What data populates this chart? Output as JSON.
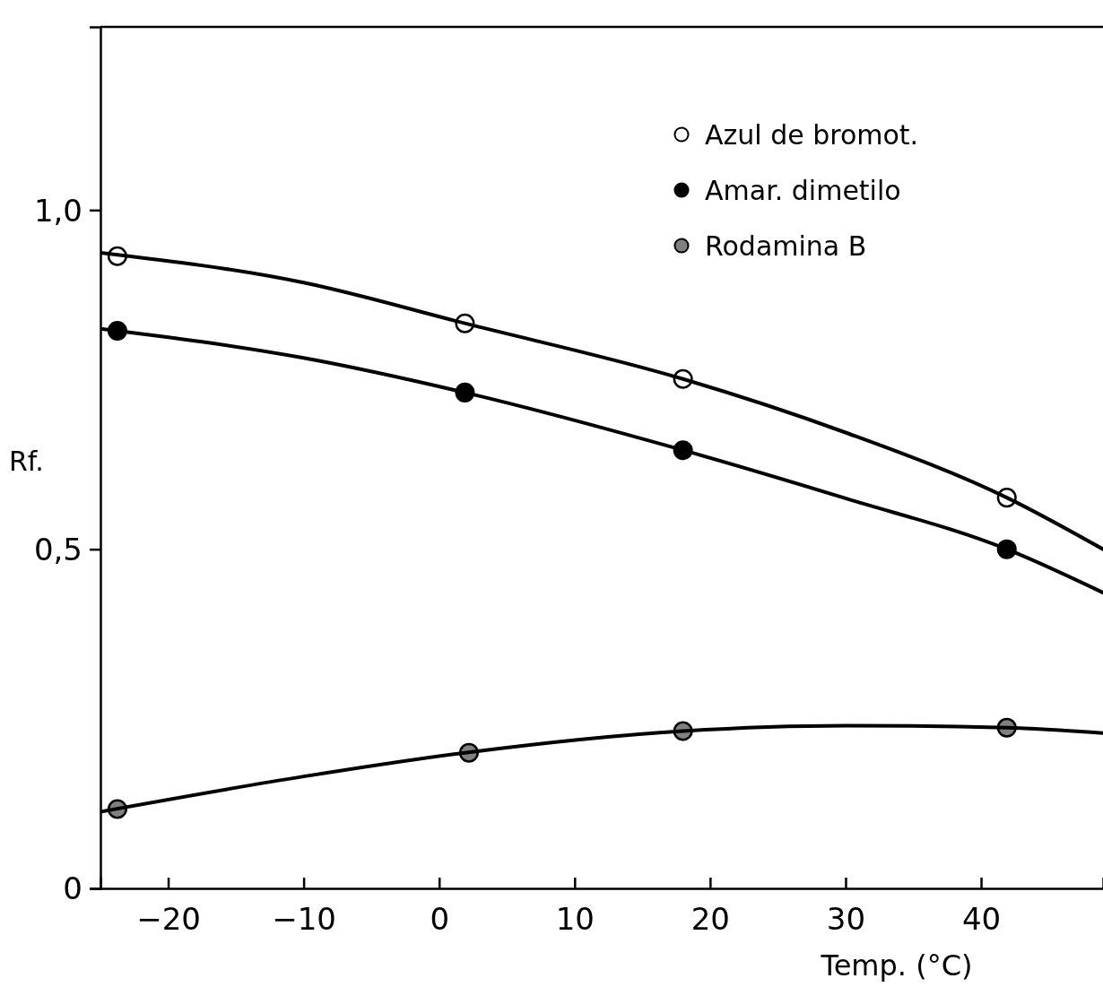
{
  "chart_data": {
    "type": "scatter",
    "xlabel": "Temp. (°C)",
    "ylabel": "Rf.",
    "xlim": [
      -25,
      49
    ],
    "ylim": [
      0,
      1.27
    ],
    "xticks": [
      {
        "value": -20,
        "label": "−20"
      },
      {
        "value": -10,
        "label": "−10"
      },
      0,
      10,
      20,
      30,
      40
    ],
    "yticks": [
      0,
      {
        "value": 0.5,
        "label": "0,5"
      },
      {
        "value": 1,
        "label": "1,0"
      }
    ],
    "legend": "top right",
    "marker": "circle",
    "grid": false,
    "series": [
      {
        "name": "Azul de bromot.",
        "color": "#ffffff",
        "x": [
          -23.75,
          1.9,
          18,
          41.9
        ],
        "values": [
          0.932,
          0.833,
          0.751,
          0.576
        ]
      },
      {
        "name": "Amar. dimetilo",
        "color": "#000000",
        "x": [
          -23.75,
          1.9,
          18,
          41.9
        ],
        "values": [
          0.822,
          0.731,
          0.646,
          0.5
        ]
      },
      {
        "name": "Rodamina B",
        "color": "#808080",
        "x": [
          -23.75,
          2.2,
          18,
          41.9
        ],
        "values": [
          0.117,
          0.2,
          0.232,
          0.237
        ]
      },
      {
        "type": "line",
        "marker": "none",
        "color": "#000000",
        "x": [
          -25,
          -10,
          1.9,
          18,
          30,
          41.9,
          49
        ],
        "values": [
          0.937,
          0.893,
          0.833,
          0.751,
          0.672,
          0.576,
          0.5
        ]
      },
      {
        "type": "line",
        "marker": "none",
        "color": "#000000",
        "x": [
          -25,
          -10,
          1.9,
          18,
          30,
          41.9,
          49
        ],
        "values": [
          0.825,
          0.782,
          0.731,
          0.646,
          0.575,
          0.5,
          0.436
        ]
      },
      {
        "type": "line",
        "marker": "none",
        "color": "#000000",
        "x": [
          -25,
          -10,
          1.9,
          18,
          30,
          41.9,
          49
        ],
        "values": [
          0.113,
          0.165,
          0.2,
          0.232,
          0.24,
          0.237,
          0.229
        ]
      }
    ]
  }
}
